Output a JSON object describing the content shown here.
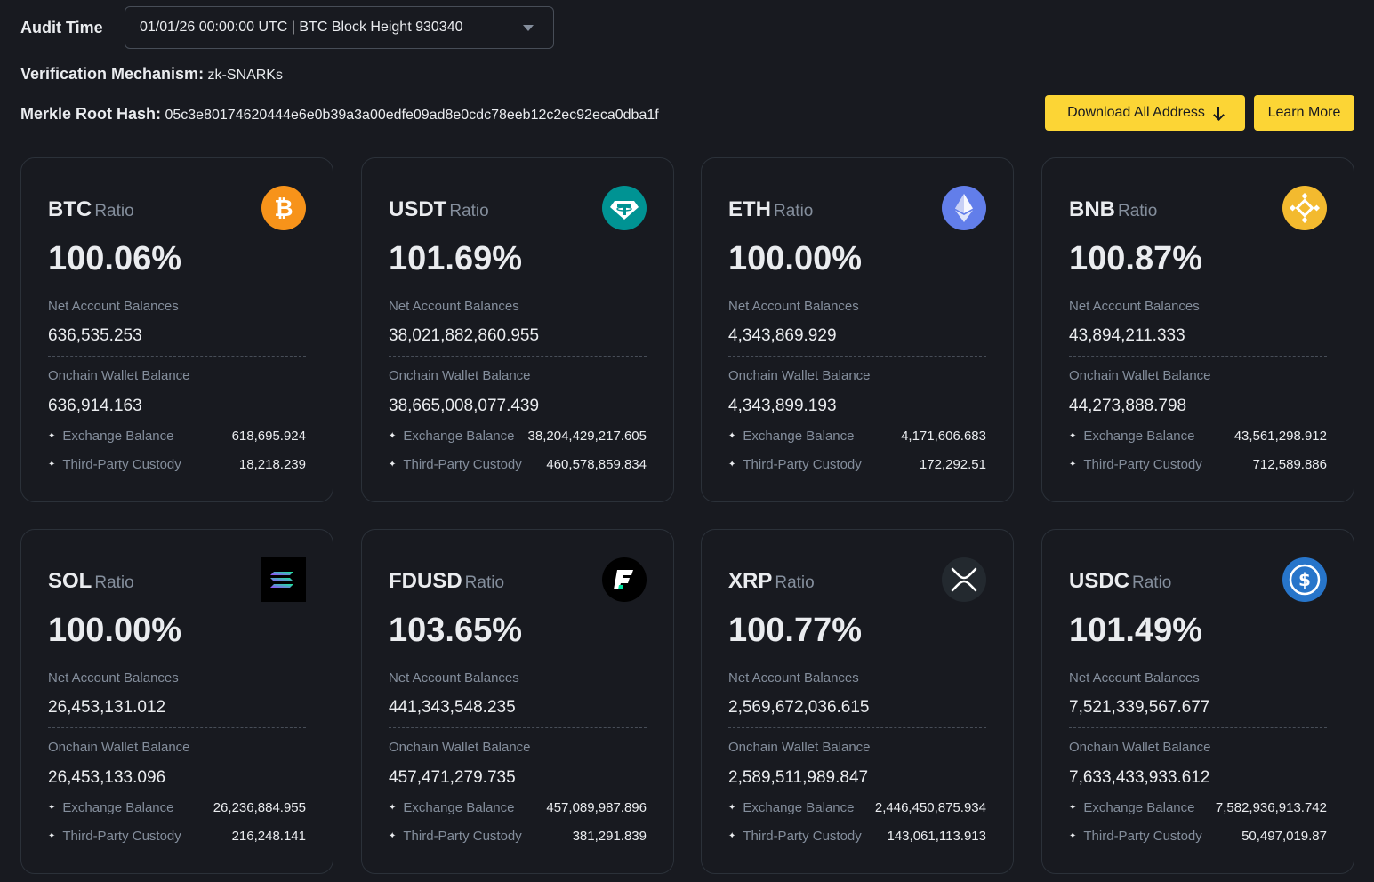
{
  "audit": {
    "label": "Audit Time",
    "selected": "01/01/26 00:00:00 UTC | BTC Block Height 930340"
  },
  "verification": {
    "label": "Verification Mechanism:",
    "value": "zk-SNARKs"
  },
  "merkle": {
    "label": "Merkle Root Hash:",
    "value": "05c3e80174620444e6e0b39a3a00edfe09ad8e0cdc78eeb12c2ec92eca0dba1f"
  },
  "buttons": {
    "download": "Download All Address",
    "learn": "Learn More"
  },
  "labels": {
    "ratio": "Ratio",
    "net": "Net Account Balances",
    "onchain": "Onchain Wallet Balance",
    "exchange": "Exchange Balance",
    "custody": "Third-Party Custody"
  },
  "coins": [
    {
      "symbol": "BTC",
      "ratio": "100.06%",
      "net": "636,535.253",
      "onchain": "636,914.163",
      "exchange": "618,695.924",
      "custody": "18,218.239",
      "icon": "bitcoin-icon",
      "color": "#f7931a"
    },
    {
      "symbol": "USDT",
      "ratio": "101.69%",
      "net": "38,021,882,860.955",
      "onchain": "38,665,008,077.439",
      "exchange": "38,204,429,217.605",
      "custody": "460,578,859.834",
      "icon": "tether-icon",
      "color": "#009393"
    },
    {
      "symbol": "ETH",
      "ratio": "100.00%",
      "net": "4,343,869.929",
      "onchain": "4,343,899.193",
      "exchange": "4,171,606.683",
      "custody": "172,292.51",
      "icon": "ethereum-icon",
      "color": "#627eea"
    },
    {
      "symbol": "BNB",
      "ratio": "100.87%",
      "net": "43,894,211.333",
      "onchain": "44,273,888.798",
      "exchange": "43,561,298.912",
      "custody": "712,589.886",
      "icon": "bnb-icon",
      "color": "#f3ba2f"
    },
    {
      "symbol": "SOL",
      "ratio": "100.00%",
      "net": "26,453,131.012",
      "onchain": "26,453,133.096",
      "exchange": "26,236,884.955",
      "custody": "216,248.141",
      "icon": "solana-icon",
      "color": "#000000"
    },
    {
      "symbol": "FDUSD",
      "ratio": "103.65%",
      "net": "441,343,548.235",
      "onchain": "457,471,279.735",
      "exchange": "457,089,987.896",
      "custody": "381,291.839",
      "icon": "fdusd-icon",
      "color": "#000000"
    },
    {
      "symbol": "XRP",
      "ratio": "100.77%",
      "net": "2,569,672,036.615",
      "onchain": "2,589,511,989.847",
      "exchange": "2,446,450,875.934",
      "custody": "143,061,113.913",
      "icon": "xrp-icon",
      "color": "#23292f"
    },
    {
      "symbol": "USDC",
      "ratio": "101.49%",
      "net": "7,521,339,567.677",
      "onchain": "7,633,433,933.612",
      "exchange": "7,582,936,913.742",
      "custody": "50,497,019.87",
      "icon": "usdc-icon",
      "color": "#2775ca"
    }
  ]
}
